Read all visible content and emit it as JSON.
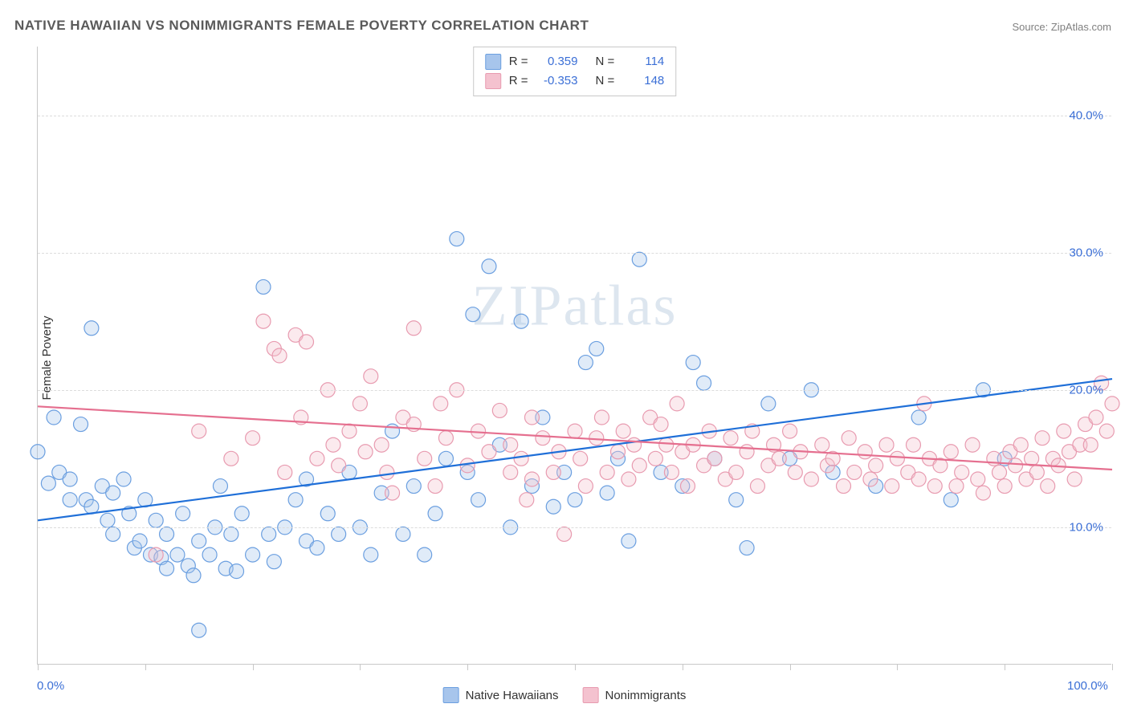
{
  "title": "NATIVE HAWAIIAN VS NONIMMIGRANTS FEMALE POVERTY CORRELATION CHART",
  "source": "Source: ZipAtlas.com",
  "ylabel": "Female Poverty",
  "watermark": "ZIPatlas",
  "chart": {
    "type": "scatter",
    "xlim": [
      0,
      100
    ],
    "ylim": [
      0,
      45
    ],
    "x_ticks": [
      0,
      10,
      20,
      30,
      40,
      50,
      60,
      70,
      80,
      90,
      100
    ],
    "x_tick_labels": {
      "0": "0.0%",
      "100": "100.0%"
    },
    "y_gridlines": [
      10,
      20,
      30,
      40
    ],
    "y_tick_labels": {
      "10": "10.0%",
      "20": "20.0%",
      "30": "30.0%",
      "40": "40.0%"
    },
    "background_color": "#ffffff",
    "grid_color": "#dcdcdc",
    "axis_color": "#c8c8c8",
    "tick_label_color": "#3b6fd6",
    "point_radius": 9,
    "point_stroke_width": 1.2,
    "point_fill_opacity": 0.35,
    "line_width": 2.2
  },
  "series": {
    "native_hawaiians": {
      "label": "Native Hawaiians",
      "color_fill": "#a7c5ec",
      "color_stroke": "#6b9fe0",
      "line_color": "#1f6fd8",
      "regression": {
        "x1": 0,
        "y1": 10.5,
        "x2": 100,
        "y2": 20.8
      },
      "points": [
        [
          0,
          15.5
        ],
        [
          1,
          13.2
        ],
        [
          1.5,
          18
        ],
        [
          2,
          14
        ],
        [
          3,
          12
        ],
        [
          3,
          13.5
        ],
        [
          4,
          17.5
        ],
        [
          4.5,
          12
        ],
        [
          5,
          24.5
        ],
        [
          5,
          11.5
        ],
        [
          6,
          13
        ],
        [
          6.5,
          10.5
        ],
        [
          7,
          9.5
        ],
        [
          7,
          12.5
        ],
        [
          8,
          13.5
        ],
        [
          8.5,
          11
        ],
        [
          9,
          8.5
        ],
        [
          9.5,
          9
        ],
        [
          10,
          12
        ],
        [
          10.5,
          8
        ],
        [
          11,
          10.5
        ],
        [
          11.5,
          7.8
        ],
        [
          12,
          9.5
        ],
        [
          12,
          7
        ],
        [
          13,
          8
        ],
        [
          13.5,
          11
        ],
        [
          14,
          7.2
        ],
        [
          14.5,
          6.5
        ],
        [
          15,
          9
        ],
        [
          15,
          2.5
        ],
        [
          16,
          8
        ],
        [
          16.5,
          10
        ],
        [
          17,
          13
        ],
        [
          17.5,
          7
        ],
        [
          18,
          9.5
        ],
        [
          18.5,
          6.8
        ],
        [
          19,
          11
        ],
        [
          20,
          8
        ],
        [
          21,
          27.5
        ],
        [
          21.5,
          9.5
        ],
        [
          22,
          7.5
        ],
        [
          23,
          10
        ],
        [
          24,
          12
        ],
        [
          25,
          9
        ],
        [
          25,
          13.5
        ],
        [
          26,
          8.5
        ],
        [
          27,
          11
        ],
        [
          28,
          9.5
        ],
        [
          29,
          14
        ],
        [
          30,
          10
        ],
        [
          31,
          8
        ],
        [
          32,
          12.5
        ],
        [
          33,
          17
        ],
        [
          34,
          9.5
        ],
        [
          35,
          13
        ],
        [
          36,
          8
        ],
        [
          37,
          11
        ],
        [
          38,
          15
        ],
        [
          39,
          31
        ],
        [
          40,
          14
        ],
        [
          40.5,
          25.5
        ],
        [
          41,
          12
        ],
        [
          42,
          29
        ],
        [
          43,
          16
        ],
        [
          44,
          10
        ],
        [
          45,
          25
        ],
        [
          46,
          13
        ],
        [
          47,
          18
        ],
        [
          48,
          11.5
        ],
        [
          49,
          14
        ],
        [
          50,
          12
        ],
        [
          51,
          22
        ],
        [
          52,
          23
        ],
        [
          53,
          12.5
        ],
        [
          54,
          15
        ],
        [
          55,
          9
        ],
        [
          56,
          29.5
        ],
        [
          58,
          14
        ],
        [
          60,
          13
        ],
        [
          61,
          22
        ],
        [
          62,
          20.5
        ],
        [
          63,
          15
        ],
        [
          65,
          12
        ],
        [
          66,
          8.5
        ],
        [
          68,
          19
        ],
        [
          70,
          15
        ],
        [
          72,
          20
        ],
        [
          74,
          14
        ],
        [
          78,
          13
        ],
        [
          82,
          18
        ],
        [
          85,
          12
        ],
        [
          88,
          20
        ],
        [
          90,
          15
        ]
      ]
    },
    "nonimmigrants": {
      "label": "Nonimmigrants",
      "color_fill": "#f4c2cf",
      "color_stroke": "#e89bb0",
      "line_color": "#e56f8f",
      "regression": {
        "x1": 0,
        "y1": 18.8,
        "x2": 100,
        "y2": 14.2
      },
      "points": [
        [
          11,
          8
        ],
        [
          15,
          17
        ],
        [
          18,
          15
        ],
        [
          20,
          16.5
        ],
        [
          21,
          25
        ],
        [
          22,
          23
        ],
        [
          22.5,
          22.5
        ],
        [
          23,
          14
        ],
        [
          24,
          24
        ],
        [
          24.5,
          18
        ],
        [
          25,
          23.5
        ],
        [
          26,
          15
        ],
        [
          27,
          20
        ],
        [
          27.5,
          16
        ],
        [
          28,
          14.5
        ],
        [
          29,
          17
        ],
        [
          30,
          19
        ],
        [
          30.5,
          15.5
        ],
        [
          31,
          21
        ],
        [
          32,
          16
        ],
        [
          32.5,
          14
        ],
        [
          33,
          12.5
        ],
        [
          34,
          18
        ],
        [
          35,
          17.5
        ],
        [
          35,
          24.5
        ],
        [
          36,
          15
        ],
        [
          37,
          13
        ],
        [
          37.5,
          19
        ],
        [
          38,
          16.5
        ],
        [
          39,
          20
        ],
        [
          40,
          14.5
        ],
        [
          41,
          17
        ],
        [
          42,
          15.5
        ],
        [
          43,
          18.5
        ],
        [
          44,
          14
        ],
        [
          44,
          16
        ],
        [
          45,
          15
        ],
        [
          45.5,
          12
        ],
        [
          46,
          13.5
        ],
        [
          46,
          18
        ],
        [
          47,
          16.5
        ],
        [
          48,
          14
        ],
        [
          48.5,
          15.5
        ],
        [
          49,
          9.5
        ],
        [
          50,
          17
        ],
        [
          50.5,
          15
        ],
        [
          51,
          13
        ],
        [
          52,
          16.5
        ],
        [
          52.5,
          18
        ],
        [
          53,
          14
        ],
        [
          54,
          15.5
        ],
        [
          54.5,
          17
        ],
        [
          55,
          13.5
        ],
        [
          55.5,
          16
        ],
        [
          56,
          14.5
        ],
        [
          57,
          18
        ],
        [
          57.5,
          15
        ],
        [
          58,
          17.5
        ],
        [
          58.5,
          16
        ],
        [
          59,
          14
        ],
        [
          59.5,
          19
        ],
        [
          60,
          15.5
        ],
        [
          60.5,
          13
        ],
        [
          61,
          16
        ],
        [
          62,
          14.5
        ],
        [
          62.5,
          17
        ],
        [
          63,
          15
        ],
        [
          64,
          13.5
        ],
        [
          64.5,
          16.5
        ],
        [
          65,
          14
        ],
        [
          66,
          15.5
        ],
        [
          66.5,
          17
        ],
        [
          67,
          13
        ],
        [
          68,
          14.5
        ],
        [
          68.5,
          16
        ],
        [
          69,
          15
        ],
        [
          70,
          17
        ],
        [
          70.5,
          14
        ],
        [
          71,
          15.5
        ],
        [
          72,
          13.5
        ],
        [
          73,
          16
        ],
        [
          73.5,
          14.5
        ],
        [
          74,
          15
        ],
        [
          75,
          13
        ],
        [
          75.5,
          16.5
        ],
        [
          76,
          14
        ],
        [
          77,
          15.5
        ],
        [
          77.5,
          13.5
        ],
        [
          78,
          14.5
        ],
        [
          79,
          16
        ],
        [
          79.5,
          13
        ],
        [
          80,
          15
        ],
        [
          81,
          14
        ],
        [
          81.5,
          16
        ],
        [
          82,
          13.5
        ],
        [
          82.5,
          19
        ],
        [
          83,
          15
        ],
        [
          83.5,
          13
        ],
        [
          84,
          14.5
        ],
        [
          85,
          15.5
        ],
        [
          85.5,
          13
        ],
        [
          86,
          14
        ],
        [
          87,
          16
        ],
        [
          87.5,
          13.5
        ],
        [
          88,
          12.5
        ],
        [
          89,
          15
        ],
        [
          89.5,
          14
        ],
        [
          90,
          13
        ],
        [
          90.5,
          15.5
        ],
        [
          91,
          14.5
        ],
        [
          91.5,
          16
        ],
        [
          92,
          13.5
        ],
        [
          92.5,
          15
        ],
        [
          93,
          14
        ],
        [
          93.5,
          16.5
        ],
        [
          94,
          13
        ],
        [
          94.5,
          15
        ],
        [
          95,
          14.5
        ],
        [
          95.5,
          17
        ],
        [
          96,
          15.5
        ],
        [
          96.5,
          13.5
        ],
        [
          97,
          16
        ],
        [
          97.5,
          17.5
        ],
        [
          98,
          16
        ],
        [
          98.5,
          18
        ],
        [
          99,
          20.5
        ],
        [
          99.5,
          17
        ],
        [
          100,
          19
        ]
      ]
    }
  },
  "stats_box": {
    "rows": [
      {
        "swatch_fill": "#a7c5ec",
        "swatch_stroke": "#6b9fe0",
        "R": "0.359",
        "N": "114"
      },
      {
        "swatch_fill": "#f4c2cf",
        "swatch_stroke": "#e89bb0",
        "R": "-0.353",
        "N": "148"
      }
    ]
  },
  "bottom_legend": [
    {
      "swatch_fill": "#a7c5ec",
      "swatch_stroke": "#6b9fe0",
      "label": "Native Hawaiians"
    },
    {
      "swatch_fill": "#f4c2cf",
      "swatch_stroke": "#e89bb0",
      "label": "Nonimmigrants"
    }
  ]
}
